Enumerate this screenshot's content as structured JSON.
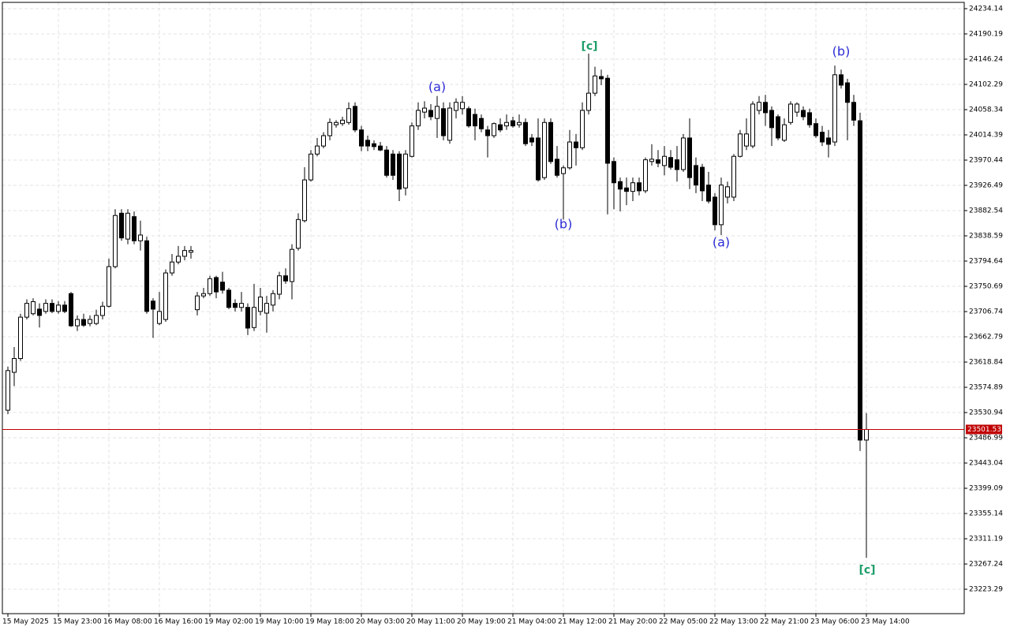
{
  "chart_data": {
    "type": "candlestick",
    "categories": [
      "15 May 2025",
      null,
      null,
      null,
      null,
      null,
      null,
      null,
      "15 May 23:00",
      null,
      null,
      null,
      null,
      null,
      null,
      null,
      "16 May 08:00",
      null,
      null,
      null,
      null,
      null,
      null,
      null,
      "16 May 16:00",
      null,
      null,
      null,
      null,
      null,
      null,
      null,
      "19 May 02:00",
      null,
      null,
      null,
      null,
      null,
      null,
      null,
      "19 May 10:00",
      null,
      null,
      null,
      null,
      null,
      null,
      null,
      "19 May 18:00",
      null,
      null,
      null,
      null,
      null,
      null,
      null,
      "20 May 03:00",
      null,
      null,
      null,
      null,
      null,
      null,
      null,
      "20 May 11:00",
      null,
      null,
      null,
      null,
      null,
      null,
      null,
      "20 May 19:00",
      null,
      null,
      null,
      null,
      null,
      null,
      null,
      "21 May 04:00",
      null,
      null,
      null,
      null,
      null,
      null,
      null,
      "21 May 12:00",
      null,
      null,
      null,
      null,
      null,
      null,
      null,
      "21 May 20:00",
      null,
      null,
      null,
      null,
      null,
      null,
      null,
      "22 May 05:00",
      null,
      null,
      null,
      null,
      null,
      null,
      null,
      "22 May 13:00",
      null,
      null,
      null,
      null,
      null,
      null,
      null,
      "22 May 21:00",
      null,
      null,
      null,
      null,
      null,
      null,
      null,
      "23 May 06:00",
      null,
      null,
      null,
      null,
      null,
      null,
      null,
      "23 May 14:00"
    ],
    "open": [
      23535,
      23601,
      23625,
      23697,
      23703,
      23711,
      23707,
      23721,
      23707,
      23718,
      23738,
      23682,
      23693,
      23686,
      23686,
      23700,
      23716,
      23785,
      23878,
      23833,
      23872,
      23830,
      23830,
      23725,
      23686,
      23693,
      23774,
      23793,
      23803,
      23810,
      23710,
      23734,
      23738,
      23766,
      23758,
      23744,
      23721,
      23714,
      23714,
      23679,
      23707,
      23704,
      23718,
      23737,
      23769,
      23759,
      23817,
      23865,
      23936,
      23981,
      23995,
      24013,
      24032,
      24034,
      24036,
      24064,
      24023,
      24005,
      23999,
      23995,
      23988,
      23981,
      23981,
      23922,
      23977,
      24030,
      24054,
      24057,
      24043,
      24060,
      24005,
      24057,
      24060,
      24060,
      24050,
      24043,
      24023,
      24013,
      24032,
      24030,
      24039,
      24032,
      24036,
      24009,
      24009,
      23940,
      24036,
      23972,
      23947,
      23957,
      24002,
      23992,
      24057,
      24087,
      24116,
      24113,
      23968,
      23933,
      23922,
      23916,
      23931,
      23917,
      23968,
      23971,
      23961,
      23975,
      23971,
      23954,
      24009,
      23961,
      23958,
      23927,
      23906,
      23858,
      23906,
      23906,
      23977,
      23995,
      23995,
      24057,
      24071,
      24057,
      24046,
      24005,
      24036,
      24054,
      24057,
      24053,
      24034,
      24019,
      24009,
      24002,
      24119,
      24105,
      24071,
      24039,
      23483
    ],
    "high": [
      23611,
      23645,
      23703,
      23728,
      23730,
      23721,
      23728,
      23728,
      23725,
      23725,
      23741,
      23700,
      23703,
      23700,
      23710,
      23724,
      23799,
      23885,
      23885,
      23885,
      23881,
      23865,
      23837,
      23730,
      23741,
      23780,
      23807,
      23821,
      23821,
      23821,
      23741,
      23748,
      23769,
      23769,
      23776,
      23748,
      23728,
      23741,
      23721,
      23755,
      23748,
      23734,
      23744,
      23776,
      23782,
      23824,
      23878,
      23958,
      23988,
      24009,
      24019,
      24043,
      24040,
      24046,
      24071,
      24071,
      24030,
      24013,
      24005,
      24002,
      23995,
      23988,
      23986,
      23988,
      24036,
      24071,
      24073,
      24068,
      24082,
      24071,
      24071,
      24078,
      24082,
      24064,
      24060,
      24050,
      24030,
      24036,
      24043,
      24050,
      24046,
      24050,
      24043,
      24016,
      24043,
      24043,
      24043,
      23995,
      23961,
      24023,
      24016,
      24071,
      24156,
      24133,
      24128,
      24119,
      23975,
      23940,
      23940,
      23940,
      23940,
      23975,
      23998,
      23988,
      23995,
      23988,
      23995,
      24016,
      24043,
      23975,
      23964,
      23950,
      23913,
      23940,
      23933,
      23981,
      24023,
      24043,
      24073,
      24082,
      24084,
      24064,
      24050,
      24043,
      24073,
      24071,
      24064,
      24060,
      24043,
      24030,
      24023,
      24135,
      24128,
      24112,
      24084,
      24053,
      23530
    ],
    "low": [
      23528,
      23577,
      23621,
      23693,
      23700,
      23679,
      23703,
      23704,
      23703,
      23704,
      23680,
      23673,
      23680,
      23681,
      23683,
      23693,
      23714,
      23782,
      23830,
      23824,
      23824,
      23813,
      23703,
      23661,
      23683,
      23689,
      23769,
      23789,
      23796,
      23799,
      23700,
      23730,
      23734,
      23730,
      23738,
      23711,
      23707,
      23707,
      23666,
      23673,
      23700,
      23670,
      23707,
      23728,
      23755,
      23728,
      23813,
      23862,
      23933,
      23977,
      23991,
      24005,
      24027,
      24030,
      24032,
      24019,
      23986,
      23986,
      23988,
      23986,
      23940,
      23936,
      23899,
      23909,
      23975,
      24023,
      24043,
      24040,
      24009,
      24005,
      23999,
      24043,
      24050,
      24027,
      24005,
      24019,
      23975,
      24009,
      24019,
      24023,
      24027,
      24027,
      23995,
      23995,
      23933,
      23936,
      23964,
      23940,
      23867,
      23954,
      23961,
      23988,
      24050,
      24082,
      24101,
      23876,
      23885,
      23881,
      23892,
      23899,
      23909,
      23913,
      23961,
      23958,
      23944,
      23954,
      23933,
      23950,
      23920,
      23913,
      23899,
      23895,
      23848,
      23840,
      23895,
      23899,
      23975,
      23988,
      23991,
      24050,
      24030,
      23995,
      24005,
      24002,
      24032,
      24046,
      24040,
      24027,
      24009,
      23995,
      23975,
      23995,
      24095,
      24005,
      24030,
      23464,
      23278
    ],
    "close": [
      23604,
      23625,
      23697,
      23721,
      23724,
      23700,
      23721,
      23707,
      23718,
      23707,
      23682,
      23693,
      23683,
      23693,
      23700,
      23716,
      23785,
      23874,
      23835,
      23878,
      23830,
      23840,
      23707,
      23711,
      23707,
      23774,
      23793,
      23803,
      23813,
      23813,
      23734,
      23738,
      23764,
      23741,
      23744,
      23714,
      23714,
      23721,
      23678,
      23714,
      23732,
      23721,
      23738,
      23769,
      23760,
      23815,
      23867,
      23936,
      23981,
      23995,
      24013,
      24036,
      24036,
      24040,
      24060,
      24023,
      23995,
      23995,
      23994,
      23988,
      23944,
      23944,
      23920,
      23981,
      24030,
      24057,
      24061,
      24046,
      24064,
      24013,
      24061,
      24071,
      24071,
      24030,
      24030,
      24025,
      24013,
      24034,
      24023,
      24036,
      24030,
      24036,
      23999,
      24002,
      23936,
      24036,
      23968,
      23944,
      23957,
      24002,
      23992,
      24057,
      24087,
      24117,
      24112,
      23965,
      23931,
      23920,
      23916,
      23931,
      23917,
      23971,
      23972,
      23965,
      23977,
      23958,
      23954,
      24009,
      23940,
      23927,
      23917,
      23899,
      23858,
      23927,
      23924,
      23977,
      24016,
      24016,
      24068,
      24071,
      24053,
      24027,
      24009,
      24032,
      24068,
      24068,
      24046,
      24032,
      24013,
      24002,
      23998,
      24119,
      24101,
      24071,
      24040,
      23483,
      23501.53
    ],
    "up_color": "#ffffff",
    "down_color": "#000000",
    "current_price": 23501.53,
    "current_price_color": "#c00000",
    "annotations": [
      "(a)",
      "(b)",
      "[c]",
      "(a)",
      "(b)",
      "[c]"
    ],
    "ylim": [
      23180.8,
      24245.1
    ],
    "yticks": [
      24234.14,
      24190.19,
      24146.24,
      24102.29,
      24058.34,
      24014.39,
      23970.44,
      23926.49,
      23882.54,
      23838.59,
      23794.64,
      23750.69,
      23706.74,
      23662.79,
      23618.84,
      23574.89,
      23530.94,
      23486.99,
      23443.04,
      23399.09,
      23355.14,
      23311.19,
      23267.24,
      23223.29
    ],
    "grid": true
  }
}
